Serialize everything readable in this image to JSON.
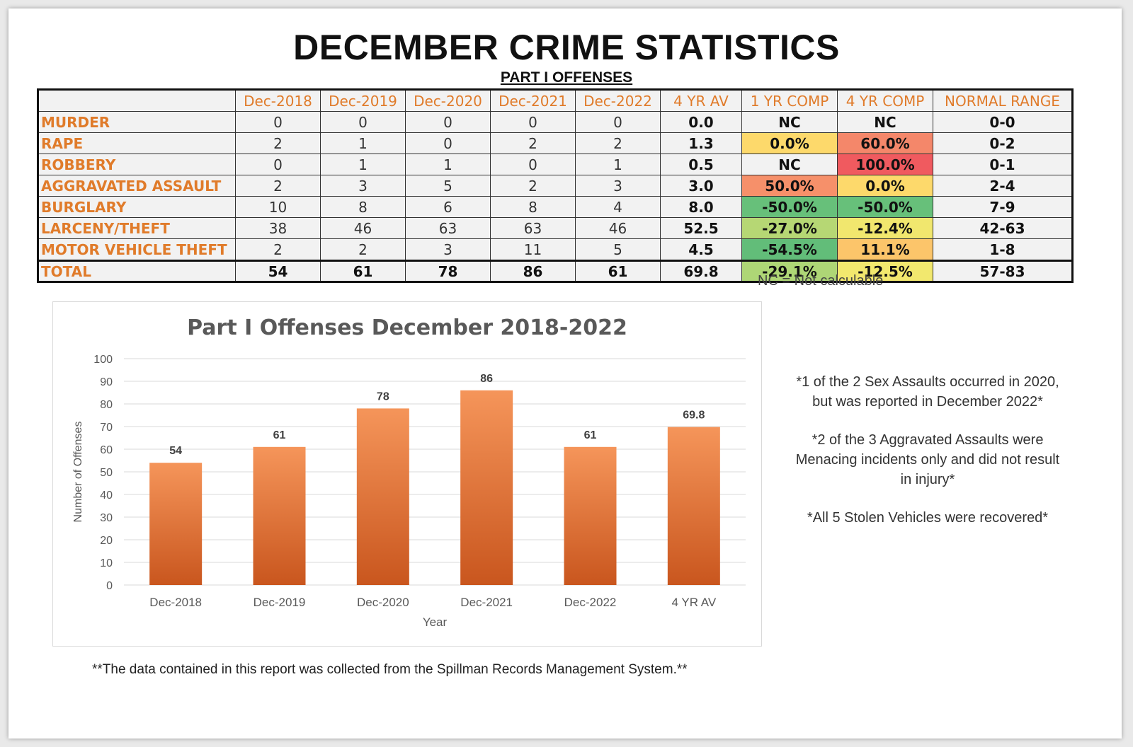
{
  "title": "DECEMBER CRIME STATISTICS",
  "subtitle": "PART I OFFENSES",
  "table": {
    "headers": [
      "",
      "Dec-2018",
      "Dec-2019",
      "Dec-2020",
      "Dec-2021",
      "Dec-2022",
      "4 YR AV",
      "1 YR COMP",
      "4 YR COMP",
      "NORMAL RANGE"
    ],
    "rows": [
      {
        "label": "MURDER",
        "values": [
          "0",
          "0",
          "0",
          "0",
          "0"
        ],
        "avg": "0.0",
        "yr1": "NC",
        "yr4": "NC",
        "range": "0-0",
        "yr1_color": "#f2f2f2",
        "yr4_color": "#f2f2f2"
      },
      {
        "label": "RAPE",
        "values": [
          "2",
          "1",
          "0",
          "2",
          "2"
        ],
        "avg": "1.3",
        "yr1": "0.0%",
        "yr4": "60.0%",
        "range": "0-2",
        "yr1_color": "#fdd96b",
        "yr4_color": "#f4876a"
      },
      {
        "label": "ROBBERY",
        "values": [
          "0",
          "1",
          "1",
          "0",
          "1"
        ],
        "avg": "0.5",
        "yr1": "NC",
        "yr4": "100.0%",
        "range": "0-1",
        "yr1_color": "#f2f2f2",
        "yr4_color": "#f05a5f"
      },
      {
        "label": "AGGRAVATED ASSAULT",
        "values": [
          "2",
          "3",
          "5",
          "2",
          "3"
        ],
        "avg": "3.0",
        "yr1": "50.0%",
        "yr4": "0.0%",
        "range": "2-4",
        "yr1_color": "#f6906a",
        "yr4_color": "#fdd96b"
      },
      {
        "label": "BURGLARY",
        "values": [
          "10",
          "8",
          "6",
          "8",
          "4"
        ],
        "avg": "8.0",
        "yr1": "-50.0%",
        "yr4": "-50.0%",
        "range": "7-9",
        "yr1_color": "#67c07a",
        "yr4_color": "#67c07a"
      },
      {
        "label": "LARCENY/THEFT",
        "values": [
          "38",
          "46",
          "63",
          "63",
          "46"
        ],
        "avg": "52.5",
        "yr1": "-27.0%",
        "yr4": "-12.4%",
        "range": "42-63",
        "yr1_color": "#b6d774",
        "yr4_color": "#f1e76e"
      },
      {
        "label": "MOTOR VEHICLE THEFT",
        "values": [
          "2",
          "2",
          "3",
          "11",
          "5"
        ],
        "avg": "4.5",
        "yr1": "-54.5%",
        "yr4": "11.1%",
        "range": "1-8",
        "yr1_color": "#62bd79",
        "yr4_color": "#fcc56a"
      }
    ],
    "total": {
      "label": "TOTAL",
      "values": [
        "54",
        "61",
        "78",
        "86",
        "61"
      ],
      "avg": "69.8",
      "yr1": "-29.1%",
      "yr4": "-12.5%",
      "range": "57-83",
      "yr1_color": "#aed676",
      "yr4_color": "#f2e86e"
    }
  },
  "nc_note": "NC = Not calculable",
  "chart_data": {
    "type": "bar",
    "title": "Part I Offenses December 2018-2022",
    "xlabel": "Year",
    "ylabel": "Number of Offenses",
    "categories": [
      "Dec-2018",
      "Dec-2019",
      "Dec-2020",
      "Dec-2021",
      "Dec-2022",
      "4 YR AV"
    ],
    "values": [
      54,
      61,
      78,
      86,
      61,
      69.8
    ],
    "data_labels": [
      "54",
      "61",
      "78",
      "86",
      "61",
      "69.8"
    ],
    "ylim": [
      0,
      100
    ],
    "yticks": [
      0,
      10,
      20,
      30,
      40,
      50,
      60,
      70,
      80,
      90,
      100
    ],
    "grid": true,
    "bar_color_top": "#f5955a",
    "bar_color_bottom": "#c9561e"
  },
  "notes": [
    "*1 of the 2 Sex Assaults occurred in 2020, but was reported in December 2022*",
    "*2 of the 3 Aggravated Assaults were Menacing incidents only and did not result in injury*",
    "*All 5 Stolen Vehicles were recovered*"
  ],
  "footer": "**The data contained in this report was collected from the Spillman Records Management System.**"
}
